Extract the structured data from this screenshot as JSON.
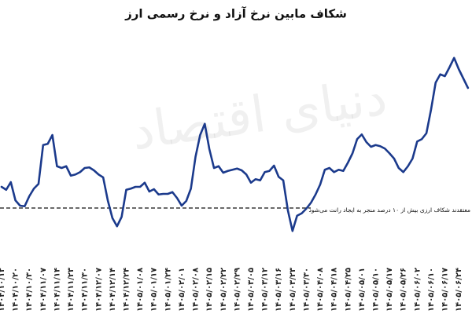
{
  "chart_data": {
    "type": "line",
    "title": "شکاف مابین نرخ آزاد و نرخ رسمی ارز",
    "watermark": "دنیای اقتصاد",
    "color": "#1b3a8c",
    "categories": [
      "۱۴۰۴/۱۰/۱۲",
      null,
      null,
      "۱۴۰۴/۱۰/۲۰",
      null,
      null,
      "۱۴۰۴/۱۰/۳۰",
      null,
      null,
      "۱۴۰۴/۱۱/۰۷",
      null,
      null,
      "۱۴۰۴/۱۱/۱۴",
      null,
      null,
      "۱۴۰۴/۱۱/۲۳",
      null,
      null,
      "۱۴۰۴/۱۱/۳۰",
      null,
      null,
      "۱۴۰۴/۱۲/۰۷",
      null,
      null,
      "۱۴۰۴/۱۲/۱۴",
      null,
      null,
      "۱۴۰۴/۱۲/۲۴",
      null,
      null,
      "۱۴۰۵/۰۱/۰۸",
      null,
      null,
      "۱۴۰۵/۰۱/۱۷",
      null,
      null,
      "۱۴۰۵/۰۱/۲۴",
      null,
      null,
      "۱۴۰۵/۰۲/۰۱",
      null,
      null,
      "۱۴۰۵/۰۲/۰۸",
      null,
      null,
      "۱۴۰۵/۰۲/۱۵",
      null,
      null,
      "۱۴۰۵/۰۲/۲۲",
      null,
      null,
      "۱۴۰۵/۰۲/۲۹",
      null,
      null,
      "۱۴۰۵/۰۳/۰۵",
      null,
      null,
      "۱۴۰۵/۰۳/۱۲",
      null,
      null,
      "۱۴۰۵/۰۳/۱۶",
      null,
      null,
      "۱۴۰۵/۰۳/۲۳",
      null,
      null,
      "۱۴۰۵/۰۳/۳۰",
      null,
      null,
      "۱۴۰۵/۰۴/۰۸",
      null,
      null,
      "۱۴۰۵/۰۴/۱۸",
      null,
      null,
      "۱۴۰۵/۰۴/۲۵",
      null,
      null,
      "۱۴۰۵/۰۵/۰۱",
      null,
      null,
      "۱۴۰۵/۰۵/۱۰",
      null,
      null,
      "۱۴۰۵/۰۵/۱۷",
      null,
      null,
      "۱۴۰۵/۰۵/۲۶",
      null,
      null,
      "۱۴۰۵/۰۶/۰۲",
      null,
      null,
      "۱۴۰۵/۰۶/۱۰",
      null,
      null,
      "۱۴۰۵/۰۶/۱۷",
      null,
      null,
      "۱۴۰۵/۰۶/۲۴",
      null,
      null
    ],
    "values": [
      13.6,
      13.1,
      14.4,
      11.3,
      10.4,
      10.3,
      12,
      13.3,
      14.1,
      20.7,
      20.9,
      22.4,
      17.1,
      16.8,
      17.1,
      15.5,
      15.7,
      16.1,
      16.8,
      16.9,
      16.4,
      15.7,
      15.2,
      11.3,
      8.3,
      6.9,
      8.5,
      13.1,
      13.3,
      13.6,
      13.6,
      14.3,
      12.8,
      13.2,
      12.3,
      12.4,
      12.4,
      12.7,
      11.7,
      10.4,
      11.2,
      13.3,
      18.7,
      22.4,
      24.3,
      20,
      16.8,
      17.1,
      16,
      16.3,
      16.5,
      16.7,
      16.4,
      15.7,
      14.3,
      14.9,
      14.7,
      16.1,
      16.3,
      17.2,
      15.3,
      14.7,
      9.6,
      6.1,
      8.7,
      9.1,
      9.9,
      10.9,
      12.3,
      14,
      16.5,
      16.8,
      16.1,
      16.5,
      16.3,
      17.7,
      19.3,
      21.7,
      22.5,
      21.2,
      20.4,
      20.7,
      20.5,
      20.1,
      19.3,
      18.4,
      16.8,
      16.1,
      17.1,
      18.4,
      21.3,
      21.7,
      22.7,
      26.7,
      31.3,
      32.7,
      32.4,
      33.9,
      35.5,
      33.6,
      32,
      30.4
    ],
    "ylim": [
      0,
      40
    ],
    "reference_line": {
      "value": 10,
      "label": "معتقدند شکاف ارزی بیش از ۱۰ درصد منجر به ایجاد رانت می‌شود"
    }
  }
}
